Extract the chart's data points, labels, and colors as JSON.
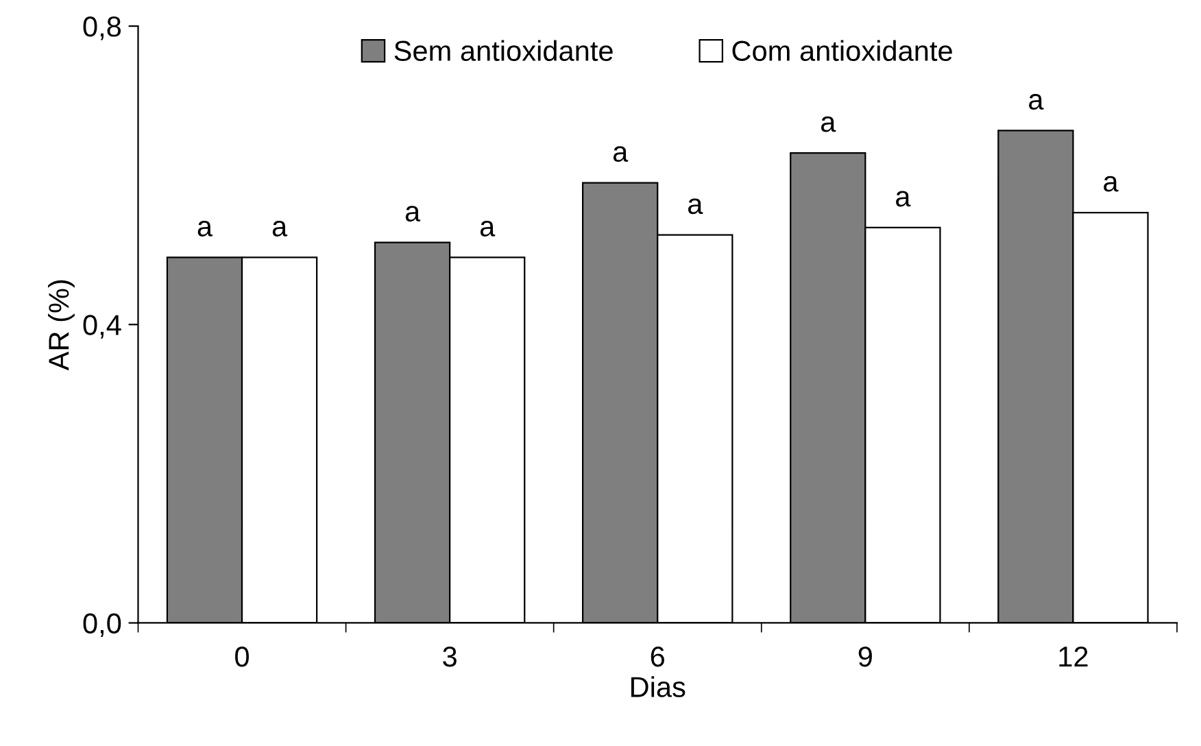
{
  "chart_data": {
    "type": "bar",
    "xlabel": "Dias",
    "ylabel": "AR (%)",
    "categories": [
      "0",
      "3",
      "6",
      "9",
      "12"
    ],
    "series": [
      {
        "name": "Sem antioxidante",
        "color": "#7f7f7f",
        "values": [
          0.49,
          0.51,
          0.59,
          0.63,
          0.66
        ],
        "value_labels": [
          "a",
          "a",
          "a",
          "a",
          "a"
        ]
      },
      {
        "name": "Com antioxidante",
        "color": "#ffffff",
        "values": [
          0.49,
          0.49,
          0.52,
          0.53,
          0.55
        ],
        "value_labels": [
          "a",
          "a",
          "a",
          "a",
          "a"
        ]
      }
    ],
    "ylim": [
      0,
      0.8
    ],
    "yticks": [
      {
        "value": 0,
        "label": "0,0"
      },
      {
        "value": 0.4,
        "label": "0,4"
      },
      {
        "value": 0.8,
        "label": "0,8"
      }
    ],
    "grid": false,
    "legend": "top"
  }
}
